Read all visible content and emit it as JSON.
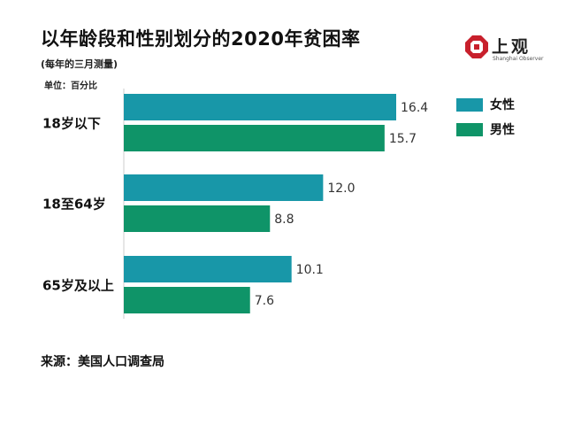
{
  "title": "以年龄段和性别划分的2020年贫困率",
  "subtitle": "(每年的三月测量)",
  "unit": "单位：百分比",
  "source": "来源：美国人口调查局",
  "logo": {
    "name": "上观",
    "sub": "Shanghai Observer"
  },
  "colors": {
    "female": "#1897a8",
    "male": "#0f9468"
  },
  "chart_data": {
    "type": "bar",
    "orientation": "horizontal",
    "categories": [
      "18岁以下",
      "18至64岁",
      "65岁及以上"
    ],
    "series": [
      {
        "name": "女性",
        "values": [
          16.4,
          12.0,
          10.1
        ]
      },
      {
        "name": "男性",
        "values": [
          15.7,
          8.8,
          7.6
        ]
      }
    ],
    "value_labels": [
      [
        "16.4",
        "12.0",
        "10.1"
      ],
      [
        "15.7",
        "8.8",
        "7.6"
      ]
    ],
    "xlim": [
      0,
      16.4
    ],
    "grid": false,
    "legend": "top-right"
  }
}
